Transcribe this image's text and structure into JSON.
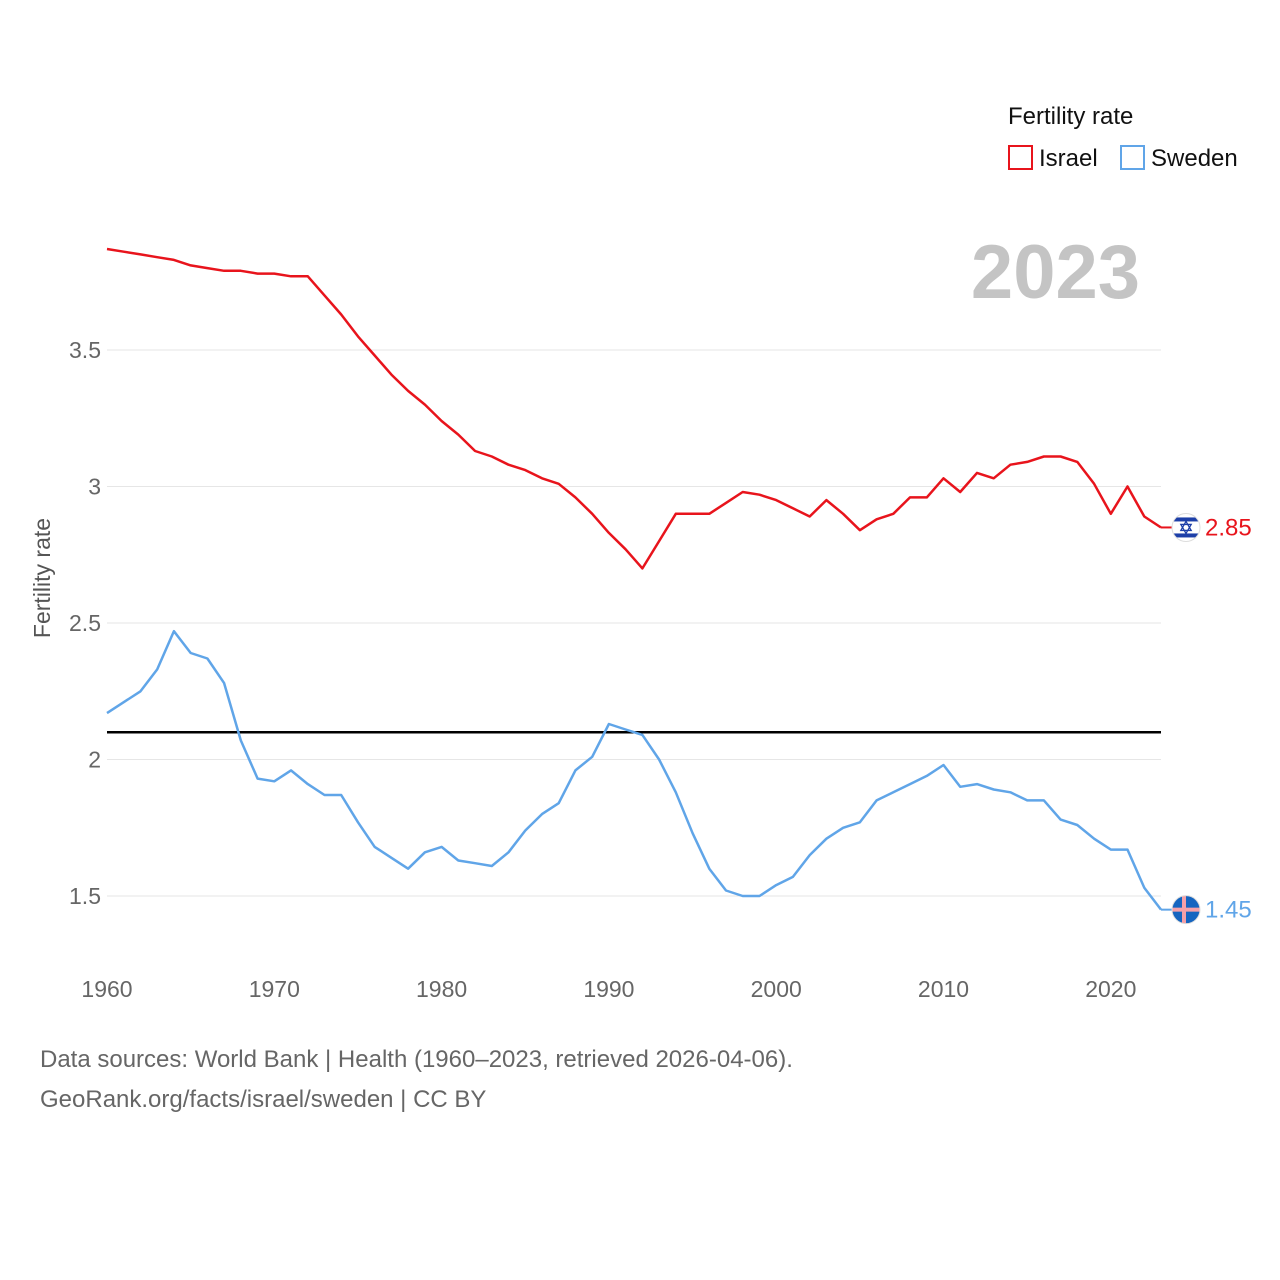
{
  "chart_data": {
    "type": "line",
    "title": "",
    "ylabel": "Fertility rate",
    "xlabel": "",
    "year_display": "2023",
    "xlim": [
      1960,
      2023
    ],
    "ylim": [
      1.3,
      3.95
    ],
    "x_ticks": [
      1960,
      1970,
      1980,
      1990,
      2000,
      2010,
      2020
    ],
    "y_ticks": [
      {
        "value": 1.5,
        "label": "1.5"
      },
      {
        "value": 2,
        "label": "2"
      },
      {
        "value": 2.5,
        "label": "2.5"
      },
      {
        "value": 3,
        "label": "3"
      },
      {
        "value": 3.5,
        "label": "3.5"
      }
    ],
    "legend": {
      "title": "Fertility rate",
      "position": "top-right",
      "entries": [
        {
          "name": "Israel",
          "color": "#e8141c"
        },
        {
          "name": "Sweden",
          "color": "#60a5e8"
        }
      ]
    },
    "reference_line": {
      "value": 2.1,
      "color": "#000000"
    },
    "x": [
      1960,
      1961,
      1962,
      1963,
      1964,
      1965,
      1966,
      1967,
      1968,
      1969,
      1970,
      1971,
      1972,
      1973,
      1974,
      1975,
      1976,
      1977,
      1978,
      1979,
      1980,
      1981,
      1982,
      1983,
      1984,
      1985,
      1986,
      1987,
      1988,
      1989,
      1990,
      1991,
      1992,
      1993,
      1994,
      1995,
      1996,
      1997,
      1998,
      1999,
      2000,
      2001,
      2002,
      2003,
      2004,
      2005,
      2006,
      2007,
      2008,
      2009,
      2010,
      2011,
      2012,
      2013,
      2014,
      2015,
      2016,
      2017,
      2018,
      2019,
      2020,
      2021,
      2022,
      2023
    ],
    "series": [
      {
        "name": "Israel",
        "color": "#e8141c",
        "end_label": "2.85",
        "flag_icon": "israel-flag-icon",
        "values": [
          3.87,
          3.86,
          3.85,
          3.84,
          3.83,
          3.81,
          3.8,
          3.79,
          3.79,
          3.78,
          3.78,
          3.77,
          3.77,
          3.7,
          3.63,
          3.55,
          3.48,
          3.41,
          3.35,
          3.3,
          3.24,
          3.19,
          3.13,
          3.11,
          3.08,
          3.06,
          3.03,
          3.01,
          2.96,
          2.9,
          2.83,
          2.77,
          2.7,
          2.8,
          2.9,
          2.9,
          2.9,
          2.94,
          2.98,
          2.97,
          2.95,
          2.92,
          2.89,
          2.95,
          2.9,
          2.84,
          2.88,
          2.9,
          2.96,
          2.96,
          3.03,
          2.98,
          3.05,
          3.03,
          3.08,
          3.09,
          3.11,
          3.11,
          3.09,
          3.01,
          2.9,
          3.0,
          2.89,
          2.85
        ]
      },
      {
        "name": "Sweden",
        "color": "#60a5e8",
        "end_label": "1.45",
        "flag_icon": "sweden-flag-icon",
        "values": [
          2.17,
          2.21,
          2.25,
          2.33,
          2.47,
          2.39,
          2.37,
          2.28,
          2.07,
          1.93,
          1.92,
          1.96,
          1.91,
          1.87,
          1.87,
          1.77,
          1.68,
          1.64,
          1.6,
          1.66,
          1.68,
          1.63,
          1.62,
          1.61,
          1.66,
          1.74,
          1.8,
          1.84,
          1.96,
          2.01,
          2.13,
          2.11,
          2.09,
          2.0,
          1.88,
          1.73,
          1.6,
          1.52,
          1.5,
          1.5,
          1.54,
          1.57,
          1.65,
          1.71,
          1.75,
          1.77,
          1.85,
          1.88,
          1.91,
          1.94,
          1.98,
          1.9,
          1.91,
          1.89,
          1.88,
          1.85,
          1.85,
          1.78,
          1.76,
          1.71,
          1.67,
          1.67,
          1.53,
          1.45
        ]
      }
    ]
  },
  "footer": {
    "sources": "Data sources: World Bank | Health (1960–2023, retrieved 2026-04-06).",
    "attribution": "GeoRank.org/facts/israel/sweden | CC BY"
  }
}
